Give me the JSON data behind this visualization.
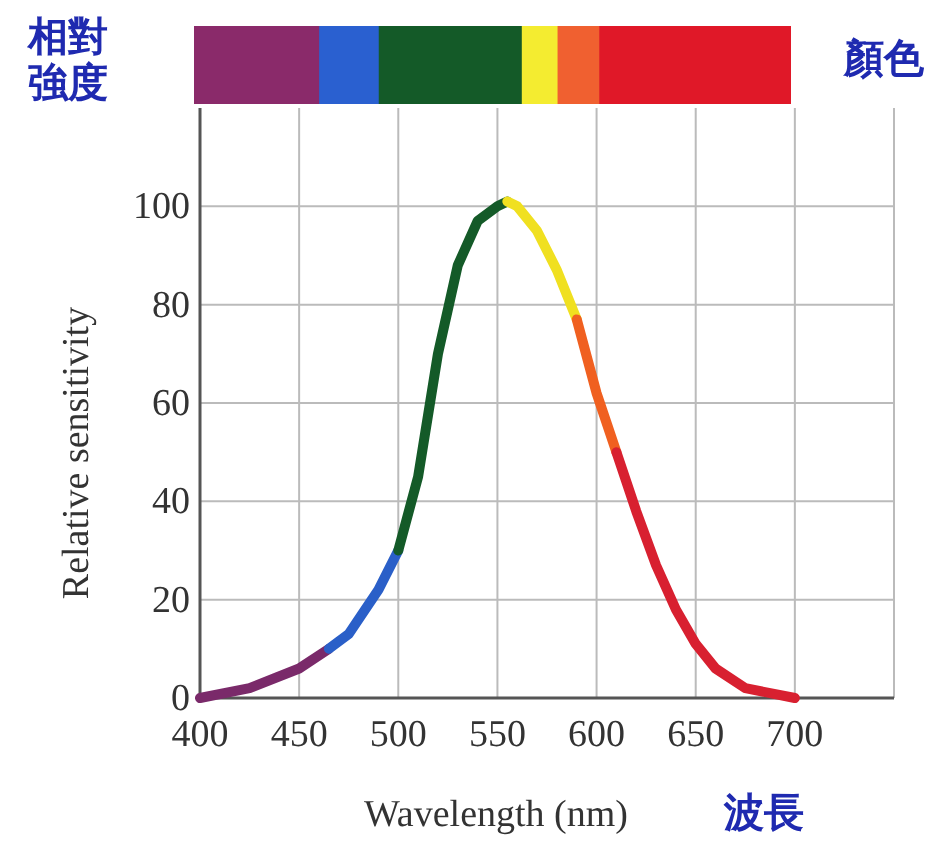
{
  "chart_data": {
    "type": "line",
    "xlabel": "Wavelength (nm)",
    "ylabel": "Relative sensitivity",
    "annotations": [
      "相對",
      "強度",
      "顏色",
      "波長"
    ],
    "xlim": [
      400,
      750
    ],
    "ylim": [
      0,
      120
    ],
    "xticks": [
      400,
      450,
      500,
      550,
      600,
      650,
      700
    ],
    "yticks": [
      0,
      20,
      40,
      60,
      80,
      100
    ],
    "grid": true,
    "marker": "none",
    "line_style": "solid",
    "series": [
      {
        "color": "#7a2a6a",
        "x": [
          400,
          425,
          450,
          465
        ],
        "values": [
          0,
          2,
          6,
          10
        ]
      },
      {
        "color": "#2a5fc8",
        "x": [
          465,
          475,
          490,
          500
        ],
        "values": [
          10,
          13,
          22,
          30
        ]
      },
      {
        "color": "#145a28",
        "x": [
          500,
          510,
          520,
          530,
          540,
          550,
          555
        ],
        "values": [
          30,
          45,
          70,
          88,
          97,
          100,
          101
        ]
      },
      {
        "color": "#f0e020",
        "x": [
          555,
          560,
          570,
          580,
          590
        ],
        "values": [
          101,
          100,
          95,
          87,
          77
        ]
      },
      {
        "color": "#f06020",
        "x": [
          590,
          600,
          610
        ],
        "values": [
          77,
          62,
          50
        ]
      },
      {
        "color": "#d82030",
        "x": [
          610,
          620,
          630,
          640,
          650,
          660,
          675,
          700
        ],
        "values": [
          50,
          38,
          27,
          18,
          11,
          6,
          2,
          0
        ]
      }
    ]
  }
}
